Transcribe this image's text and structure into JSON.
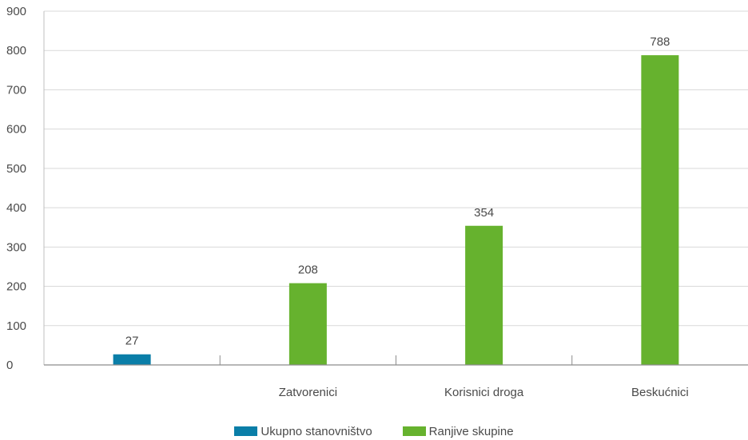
{
  "chart_data": {
    "type": "bar",
    "title": "",
    "xlabel": "",
    "ylabel": "",
    "ylim": [
      0,
      900
    ],
    "yticks": [
      0,
      100,
      200,
      300,
      400,
      500,
      600,
      700,
      800,
      900
    ],
    "grid": true,
    "legend_position": "bottom",
    "bars": [
      {
        "category": "",
        "value": 27,
        "series": "Ukupno stanovništvo"
      },
      {
        "category": "Zatvorenici",
        "value": 208,
        "series": "Ranjive skupine"
      },
      {
        "category": "Korisnici droga",
        "value": 354,
        "series": "Ranjive skupine"
      },
      {
        "category": "Beskućnici",
        "value": 788,
        "series": "Ranjive skupine"
      }
    ],
    "series": [
      {
        "name": "Ukupno stanovništvo",
        "color": "#0a7ea8"
      },
      {
        "name": "Ranjive skupine",
        "color": "#66b22e"
      }
    ]
  }
}
